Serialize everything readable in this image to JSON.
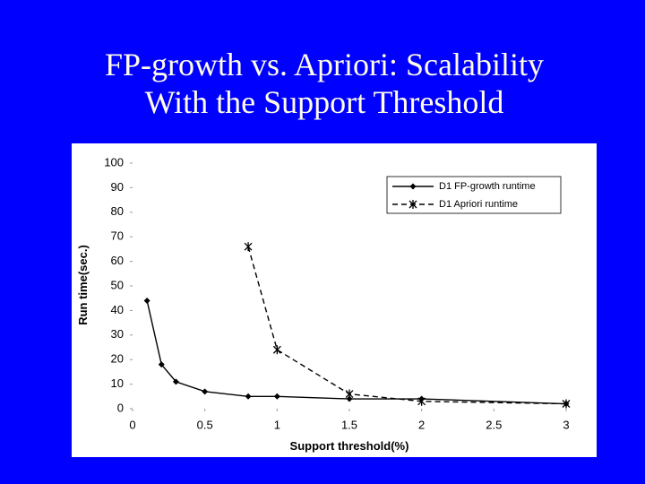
{
  "chart_data": {
    "type": "line",
    "title": "FP-growth vs. Apriori: Scalability With the Support Threshold",
    "x_label": "Support threshold(%)",
    "y_label": "Run time(sec.)",
    "xlim": [
      0,
      3
    ],
    "xticks": [
      0,
      0.5,
      1,
      1.5,
      2,
      2.5,
      3
    ],
    "ylim": [
      0,
      100
    ],
    "yticks": [
      0,
      10,
      20,
      30,
      40,
      50,
      60,
      70,
      80,
      90,
      100
    ],
    "grid": false,
    "legend": "upper right",
    "series": [
      {
        "name": "D1 FP-growth runtime",
        "color": "#000000",
        "marker": "diamond",
        "dashed": false,
        "x": [
          0.1,
          0.2,
          0.3,
          0.5,
          0.8,
          1,
          1.5,
          2,
          3
        ],
        "values": [
          44,
          18,
          11,
          7,
          5,
          5,
          4,
          4,
          2
        ]
      },
      {
        "name": "D1 Apriori runtime",
        "color": "#000000",
        "marker": "star",
        "dashed": true,
        "x": [
          0.8,
          1,
          1.5,
          2,
          3
        ],
        "values": [
          66,
          24,
          6,
          3,
          2
        ]
      }
    ]
  }
}
